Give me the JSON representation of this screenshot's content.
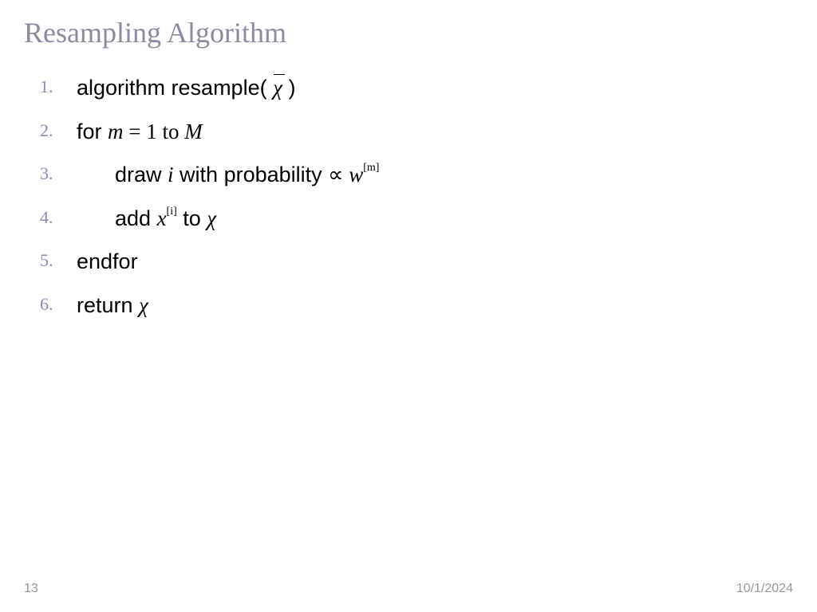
{
  "title": "Resampling Algorithm",
  "title_color": "#8a8aa0",
  "title_fontsize": 36,
  "body_fontsize": 27,
  "number_color": "#8a8ab5",
  "lines": {
    "l1_pre": "algorithm  resample( ",
    "l1_chi": "χ",
    "l1_post": "  )",
    "l2_pre": "for ",
    "l2_m": "m",
    "l2_eq": " = 1 to ",
    "l2_M": "M",
    "l3_pre": "draw ",
    "l3_i": "i",
    "l3_mid": " with probability  ",
    "l3_prop": "∝ ",
    "l3_w": "w",
    "l3_wsup": "[m]",
    "l4_pre": "add  ",
    "l4_x": "x",
    "l4_xsup": "[i]",
    "l4_mid": "  to  ",
    "l4_chi": "χ",
    "l5": "endfor",
    "l6_pre": "return  ",
    "l6_chi": "χ"
  },
  "footer": {
    "page": "13",
    "date": "10/1/2024"
  }
}
